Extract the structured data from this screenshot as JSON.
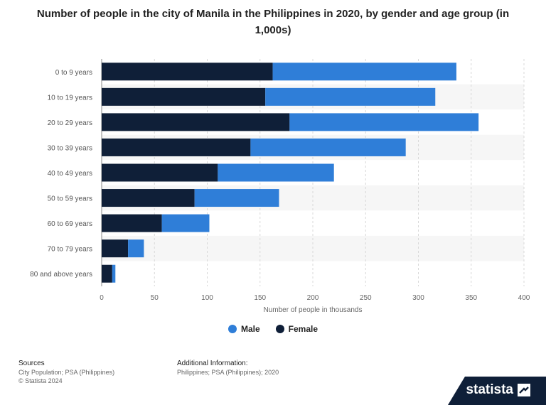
{
  "title": "Number of people in the city of Manila in the Philippines in 2020, by gender and age group (in 1,000s)",
  "legend": {
    "male": "Male",
    "female": "Female",
    "male_color": "#2f7ed8",
    "female_color": "#0f1f38"
  },
  "footer": {
    "sources_heading": "Sources",
    "sources_line1": "City Population; PSA (Philippines)",
    "sources_line2": "© Statista 2024",
    "additional_heading": "Additional Information:",
    "additional_line1": "Philippines; PSA (Philippines); 2020"
  },
  "brand": {
    "name": "statista",
    "logo_icon": "statista-logo-icon"
  },
  "chart_data": {
    "type": "bar",
    "orientation": "horizontal",
    "stacked": true,
    "title": "Number of people in the city of Manila in the Philippines in 2020, by gender and age group (in 1,000s)",
    "xlabel": "Number of people in thousands",
    "ylabel": "",
    "categories": [
      "0 to 9 years",
      "10 to 19 years",
      "20 to 29 years",
      "30 to 39 years",
      "40 to 49 years",
      "50 to 59 years",
      "60 to 69 years",
      "70 to 79 years",
      "80 and above years"
    ],
    "series": [
      {
        "name": "Female",
        "color": "#0f1f38",
        "values": [
          162,
          155,
          178,
          141,
          110,
          88,
          57,
          25,
          10
        ]
      },
      {
        "name": "Male",
        "color": "#2f7ed8",
        "values": [
          174,
          161,
          179,
          147,
          110,
          80,
          45,
          15,
          3
        ]
      }
    ],
    "xlim": [
      0,
      400
    ],
    "xticks": [
      0,
      50,
      100,
      150,
      200,
      250,
      300,
      350,
      400
    ],
    "grid": true,
    "legend_position": "bottom"
  }
}
